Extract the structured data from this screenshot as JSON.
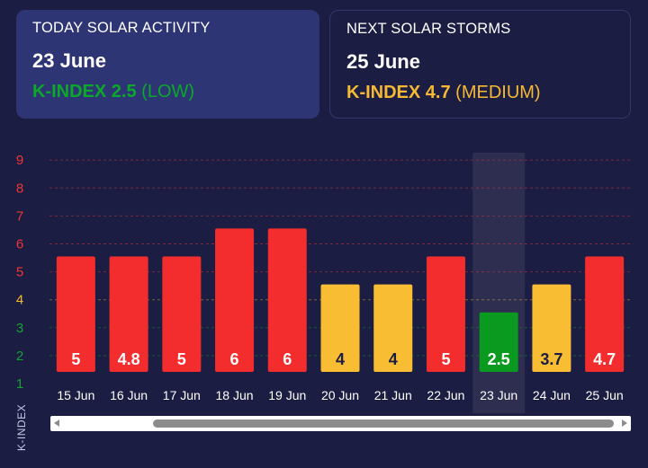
{
  "today": {
    "title": "TODAY SOLAR ACTIVITY",
    "date": "23 June",
    "k_label": "K-INDEX 2.5",
    "level": "(LOW)",
    "color": "#0ba82a"
  },
  "next": {
    "title": "NEXT SOLAR STORMS",
    "date": "25 June",
    "k_label": "K-INDEX 4.7",
    "level": "(MEDIUM)",
    "color": "#f5b934"
  },
  "chart_data": {
    "type": "bar",
    "ylabel": "K-INDEX",
    "yticks": [
      1,
      2,
      3,
      4,
      5,
      6,
      7,
      8,
      9
    ],
    "ytick_colors": [
      "#13a232",
      "#13a232",
      "#13a232",
      "#f5b934",
      "#f03535",
      "#f03535",
      "#f03535",
      "#f03535",
      "#f03535"
    ],
    "ylim": [
      1,
      9.5
    ],
    "categories": [
      "15 Jun",
      "16 Jun",
      "17 Jun",
      "18 Jun",
      "19 Jun",
      "20 Jun",
      "21 Jun",
      "22 Jun",
      "23 Jun",
      "24 Jun",
      "25 Jun"
    ],
    "values": [
      5,
      4.8,
      5,
      6,
      6,
      4,
      4,
      5,
      2.5,
      3.7,
      4.7
    ],
    "labels": [
      "5",
      "4.8",
      "5",
      "6",
      "6",
      "4",
      "4",
      "5",
      "2.5",
      "3.7",
      "4.7"
    ],
    "bar_heights": [
      5,
      5,
      5,
      6,
      6,
      4,
      4,
      5,
      3,
      4,
      5
    ],
    "bar_colors": [
      "#f32d2d",
      "#f32d2d",
      "#f32d2d",
      "#f32d2d",
      "#f32d2d",
      "#f9bd33",
      "#f9bd33",
      "#f32d2d",
      "#0a9a20",
      "#f9bd33",
      "#f32d2d"
    ],
    "label_colors": [
      "#ffffff",
      "#ffffff",
      "#ffffff",
      "#ffffff",
      "#ffffff",
      "#1c1d42",
      "#1c1d42",
      "#ffffff",
      "#ffffff",
      "#1c1d42",
      "#ffffff"
    ],
    "highlight": "23 Jun",
    "grid": true
  }
}
